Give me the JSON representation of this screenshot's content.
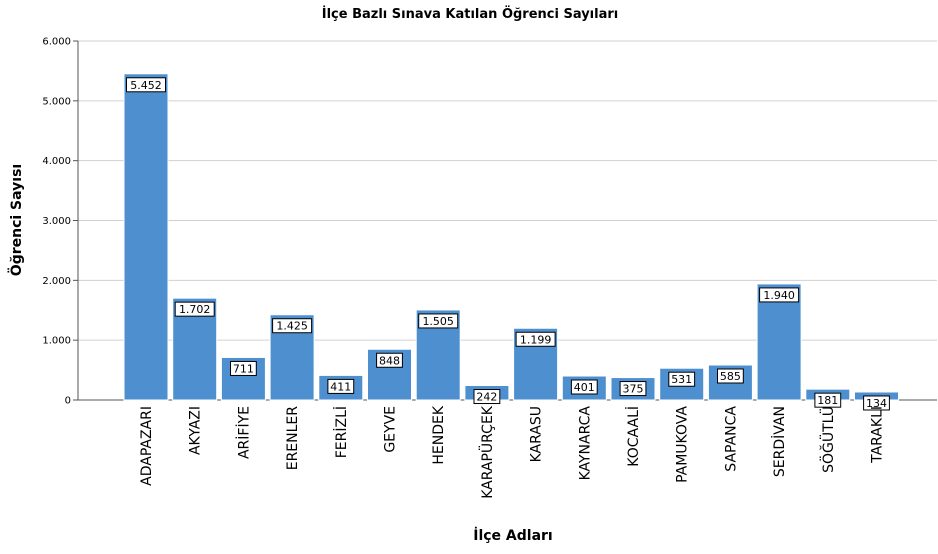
{
  "chart_data": {
    "type": "bar",
    "title": "İlçe Bazlı Sınava Katılan Öğrenci Sayıları",
    "xlabel": "İlçe Adları",
    "ylabel": "Öğrenci Sayısı",
    "ylim": [
      0,
      6000
    ],
    "yticks": [
      0,
      1000,
      2000,
      3000,
      4000,
      5000,
      6000
    ],
    "ytick_labels": [
      "0",
      "1.000",
      "2.000",
      "3.000",
      "4.000",
      "5.000",
      "6.000"
    ],
    "categories": [
      "ADAPAZARI",
      "AKYAZI",
      "ARİFİYE",
      "ERENLER",
      "FERİZLİ",
      "GEYVE",
      "HENDEK",
      "KARAPÜRÇEK",
      "KARASU",
      "KAYNARCA",
      "KOCAALİ",
      "PAMUKOVA",
      "SAPANCA",
      "SERDİVAN",
      "SÖĞÜTLÜ",
      "TARAKLI"
    ],
    "values": [
      5452,
      1702,
      711,
      1425,
      411,
      848,
      1505,
      242,
      1199,
      401,
      375,
      531,
      585,
      1940,
      181,
      134
    ],
    "value_labels": [
      "5.452",
      "1.702",
      "711",
      "1.425",
      "411",
      "848",
      "1.505",
      "242",
      "1.199",
      "401",
      "375",
      "531",
      "585",
      "1.940",
      "181",
      "134"
    ],
    "grid": true,
    "bar_color": "#4e8fcf"
  }
}
